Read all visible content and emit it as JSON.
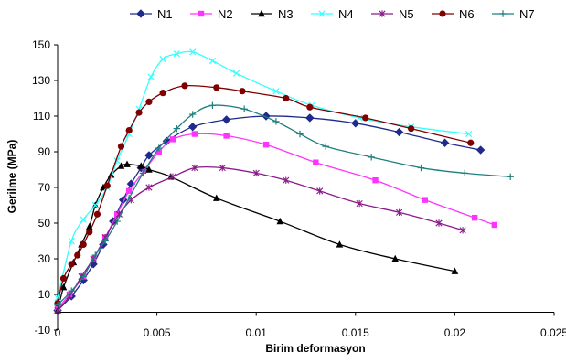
{
  "chart_data": {
    "type": "line",
    "title": "",
    "xlabel": "Birim deformasyon",
    "ylabel": "Gerilme (MPa)",
    "xlim": [
      0,
      0.025
    ],
    "ylim": [
      -10,
      150
    ],
    "x_ticks": [
      0,
      0.005,
      0.01,
      0.015,
      0.02,
      0.025
    ],
    "x_tick_labels": [
      "0",
      "0.005",
      "0.01",
      "0.015",
      "0.02",
      "0.025"
    ],
    "y_ticks": [
      -10,
      10,
      30,
      50,
      70,
      90,
      110,
      130,
      150
    ],
    "y_tick_labels": [
      "-10",
      "10",
      "30",
      "50",
      "70",
      "90",
      "110",
      "130",
      "150"
    ],
    "grid": "none",
    "legend_position": "top",
    "series": [
      {
        "name": "N1",
        "color": "#1f2a8c",
        "marker": "diamond",
        "points": [
          [
            0,
            1
          ],
          [
            0.0007,
            9
          ],
          [
            0.0013,
            18
          ],
          [
            0.0018,
            27
          ],
          [
            0.0023,
            38
          ],
          [
            0.0028,
            51
          ],
          [
            0.0033,
            63
          ],
          [
            0.0037,
            72
          ],
          [
            0.0042,
            81
          ],
          [
            0.0046,
            88
          ],
          [
            0.0055,
            96
          ],
          [
            0.0068,
            104
          ],
          [
            0.0085,
            108
          ],
          [
            0.0105,
            110
          ],
          [
            0.0127,
            109
          ],
          [
            0.015,
            106
          ],
          [
            0.0172,
            101
          ],
          [
            0.0195,
            95
          ],
          [
            0.0213,
            91
          ]
        ]
      },
      {
        "name": "N2",
        "color": "#ff33ff",
        "marker": "square",
        "points": [
          [
            0,
            2
          ],
          [
            0.0006,
            10
          ],
          [
            0.0013,
            20
          ],
          [
            0.0018,
            30
          ],
          [
            0.0024,
            42
          ],
          [
            0.003,
            55
          ],
          [
            0.0036,
            68
          ],
          [
            0.0044,
            80
          ],
          [
            0.0051,
            90
          ],
          [
            0.0058,
            97
          ],
          [
            0.0069,
            100
          ],
          [
            0.0085,
            99
          ],
          [
            0.0105,
            94
          ],
          [
            0.013,
            84
          ],
          [
            0.016,
            74
          ],
          [
            0.0185,
            63
          ],
          [
            0.021,
            53
          ],
          [
            0.022,
            49
          ]
        ]
      },
      {
        "name": "N3",
        "color": "#000000",
        "marker": "triangle",
        "points": [
          [
            0,
            1
          ],
          [
            0.0003,
            14
          ],
          [
            0.0008,
            28
          ],
          [
            0.0012,
            38
          ],
          [
            0.0016,
            48
          ],
          [
            0.0019,
            60
          ],
          [
            0.0023,
            70
          ],
          [
            0.0027,
            77
          ],
          [
            0.0032,
            82
          ],
          [
            0.0035,
            83
          ],
          [
            0.0042,
            82
          ],
          [
            0.0046,
            80
          ],
          [
            0.0057,
            76
          ],
          [
            0.008,
            64
          ],
          [
            0.0112,
            51
          ],
          [
            0.0142,
            38
          ],
          [
            0.017,
            30
          ],
          [
            0.02,
            23
          ]
        ]
      },
      {
        "name": "N4",
        "color": "#33ffff",
        "marker": "x",
        "points": [
          [
            0,
            8
          ],
          [
            0.0007,
            40
          ],
          [
            0.0013,
            52
          ],
          [
            0.0019,
            60
          ],
          [
            0.0025,
            70
          ],
          [
            0.003,
            85
          ],
          [
            0.0036,
            100
          ],
          [
            0.0041,
            114
          ],
          [
            0.0047,
            132
          ],
          [
            0.0053,
            142
          ],
          [
            0.006,
            145
          ],
          [
            0.0068,
            146
          ],
          [
            0.0078,
            141
          ],
          [
            0.009,
            134
          ],
          [
            0.011,
            124
          ],
          [
            0.0128,
            116
          ],
          [
            0.0152,
            109
          ],
          [
            0.0178,
            104
          ],
          [
            0.0207,
            100
          ]
        ]
      },
      {
        "name": "N5",
        "color": "#8b1a8b",
        "marker": "asterisk",
        "points": [
          [
            0,
            1
          ],
          [
            0.0006,
            9
          ],
          [
            0.0012,
            20
          ],
          [
            0.0018,
            30
          ],
          [
            0.0024,
            42
          ],
          [
            0.0031,
            55
          ],
          [
            0.0037,
            63
          ],
          [
            0.0046,
            70
          ],
          [
            0.0058,
            76
          ],
          [
            0.0069,
            81
          ],
          [
            0.0083,
            81
          ],
          [
            0.01,
            78
          ],
          [
            0.0115,
            74
          ],
          [
            0.0132,
            68
          ],
          [
            0.0152,
            61
          ],
          [
            0.0172,
            56
          ],
          [
            0.0192,
            50
          ],
          [
            0.0204,
            46
          ]
        ]
      },
      {
        "name": "N6",
        "color": "#800000",
        "marker": "circle",
        "points": [
          [
            0,
            5
          ],
          [
            0.0003,
            19
          ],
          [
            0.0007,
            27
          ],
          [
            0.001,
            32
          ],
          [
            0.0013,
            38
          ],
          [
            0.0016,
            45
          ],
          [
            0.002,
            55
          ],
          [
            0.0025,
            71
          ],
          [
            0.0032,
            93
          ],
          [
            0.0036,
            102
          ],
          [
            0.0041,
            112
          ],
          [
            0.0046,
            118
          ],
          [
            0.0053,
            123
          ],
          [
            0.0064,
            127
          ],
          [
            0.008,
            126
          ],
          [
            0.0093,
            124
          ],
          [
            0.0115,
            120
          ],
          [
            0.0127,
            115
          ],
          [
            0.0155,
            109
          ],
          [
            0.0178,
            103
          ],
          [
            0.0208,
            95
          ]
        ]
      },
      {
        "name": "N7",
        "color": "#1f7f7f",
        "marker": "plus",
        "points": [
          [
            0,
            4
          ],
          [
            0.0007,
            12
          ],
          [
            0.0013,
            20
          ],
          [
            0.0019,
            32
          ],
          [
            0.0024,
            40
          ],
          [
            0.003,
            51
          ],
          [
            0.0036,
            64
          ],
          [
            0.0043,
            78
          ],
          [
            0.0051,
            92
          ],
          [
            0.006,
            103
          ],
          [
            0.0068,
            111
          ],
          [
            0.0078,
            116
          ],
          [
            0.0094,
            114
          ],
          [
            0.011,
            107
          ],
          [
            0.0122,
            100
          ],
          [
            0.0135,
            93
          ],
          [
            0.0158,
            87
          ],
          [
            0.0183,
            81
          ],
          [
            0.0205,
            78
          ],
          [
            0.0228,
            76
          ]
        ]
      }
    ]
  }
}
